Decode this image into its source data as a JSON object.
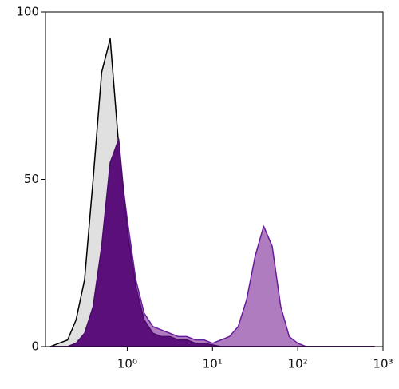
{
  "chart_data": {
    "type": "histogram-overlay",
    "xscale": "log",
    "xlim": [
      0.11,
      1000
    ],
    "ylim": [
      0,
      100
    ],
    "xticks": [
      {
        "value": 1,
        "label": "10⁰"
      },
      {
        "value": 10,
        "label": "10¹"
      },
      {
        "value": 100,
        "label": "10²"
      },
      {
        "value": 1000,
        "label": "10³"
      }
    ],
    "yticks": [
      0,
      50,
      100
    ],
    "x": [
      0.126,
      0.158,
      0.2,
      0.251,
      0.316,
      0.398,
      0.501,
      0.631,
      0.794,
      1,
      1.26,
      1.58,
      2,
      2.51,
      3.16,
      3.98,
      5.01,
      6.31,
      7.94,
      10,
      12.6,
      15.8,
      20,
      25.1,
      31.6,
      39.8,
      50.1,
      63.1,
      79.4,
      100,
      126,
      158,
      200,
      251,
      316,
      398,
      501,
      631,
      794
    ],
    "series": [
      {
        "color": "#000000",
        "fill": "#e0e0e0",
        "values": [
          0,
          1,
          2,
          8,
          20,
          50,
          82,
          92,
          60,
          15,
          5,
          3,
          2,
          1,
          1,
          1,
          1,
          0.5,
          0.5,
          0,
          0,
          0,
          0,
          0,
          0,
          0,
          0,
          0,
          0,
          0,
          0,
          0,
          0,
          0,
          0,
          0,
          0,
          0,
          0
        ]
      },
      {
        "color": "#6a1b9a",
        "fill": "#b07cc0",
        "values": [
          0,
          0,
          0,
          1,
          3,
          10,
          28,
          50,
          58,
          38,
          20,
          10,
          6,
          5,
          4,
          3,
          3,
          2,
          2,
          1,
          2,
          3,
          6,
          14,
          27,
          36,
          30,
          12,
          3,
          1,
          0,
          0,
          0,
          0,
          0,
          0,
          0,
          0,
          0
        ]
      },
      {
        "color": "#4a0a6a",
        "fill": "#5b0f7a",
        "values": [
          0,
          0,
          0,
          1,
          4,
          12,
          30,
          55,
          62,
          35,
          18,
          8,
          4,
          3,
          3,
          2,
          2,
          1,
          1,
          0.5,
          0,
          0,
          0,
          0,
          0,
          0,
          0,
          0,
          0,
          0,
          0,
          0,
          0,
          0,
          0,
          0,
          0,
          0,
          0
        ]
      }
    ]
  }
}
